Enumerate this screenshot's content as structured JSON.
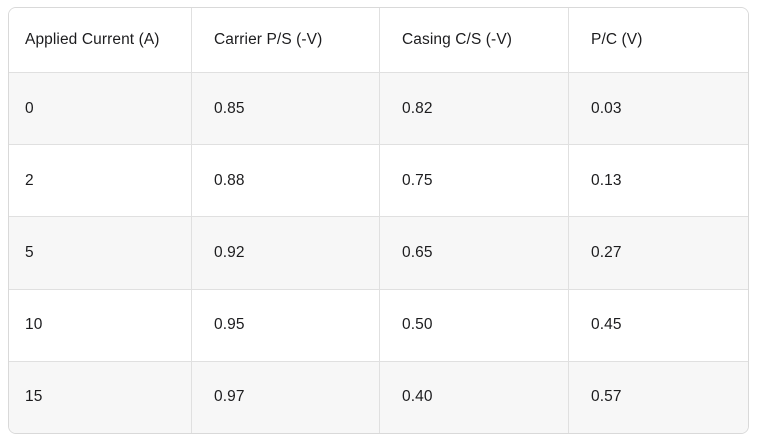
{
  "chart_data": {
    "type": "table",
    "columns": [
      "Applied Current (A)",
      "Carrier P/S (-V)",
      "Casing C/S (-V)",
      "P/C (V)"
    ],
    "rows": [
      [
        "0",
        "0.85",
        "0.82",
        "0.03"
      ],
      [
        "2",
        "0.88",
        "0.75",
        "0.13"
      ],
      [
        "5",
        "0.92",
        "0.65",
        "0.27"
      ],
      [
        "10",
        "0.95",
        "0.50",
        "0.45"
      ],
      [
        "15",
        "0.97",
        "0.40",
        "0.57"
      ]
    ],
    "title": "",
    "layout_hints": {
      "zebra_rows": "odd data rows shaded",
      "grid": "on",
      "header_position": "top"
    }
  },
  "colors": {
    "row_bg": "#ffffff",
    "row_alt_bg": "#f7f7f7",
    "grid_border": "#e0e0e0",
    "outer_border": "#d9d9d9",
    "text": "#1c1c1e"
  }
}
